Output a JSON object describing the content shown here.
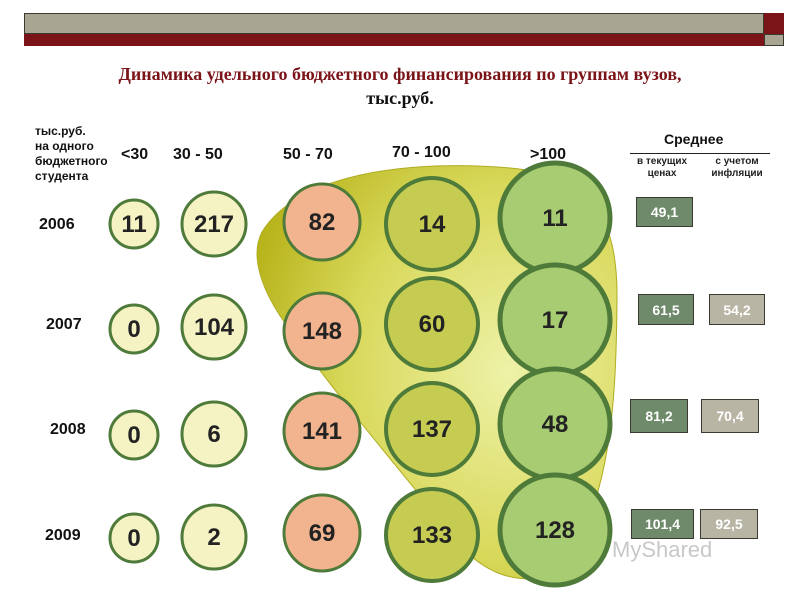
{
  "title_line1": "Динамика удельного бюджетного финансирования по группам вузов,",
  "title_line2": "тыс.руб.",
  "unit_label": [
    "тыс.руб.",
    "на одного",
    "бюджетного",
    "студента"
  ],
  "columns": [
    "<30",
    "30 - 50",
    "50 - 70",
    "70 - 100",
    ">100"
  ],
  "average": {
    "title": "Среднее",
    "sub_current": [
      "в текущих",
      "ценах"
    ],
    "sub_inflation": [
      "с учетом",
      "инфляции"
    ]
  },
  "watermark": "MyShared",
  "colors": {
    "title": "#7a1418",
    "circle_pale": "#f5f2c4",
    "circle_salmon": "#f2b48e",
    "circle_olive": "#c6cc52",
    "circle_green": "#a8cc72",
    "circle_border": "#4e7a3a",
    "area_fill": "#c8c62c",
    "box_current": "#6e8a6a",
    "box_inflation": "#b8b5a4"
  },
  "chart_data": {
    "type": "table",
    "years": [
      "2006",
      "2007",
      "2008",
      "2009"
    ],
    "groups": [
      "<30",
      "30 - 50",
      "50 - 70",
      "70 - 100",
      ">100"
    ],
    "values": [
      [
        "11",
        "217",
        "82",
        "14",
        "11"
      ],
      [
        "0",
        "104",
        "148",
        "60",
        "17"
      ],
      [
        "0",
        "6",
        "141",
        "137",
        "48"
      ],
      [
        "0",
        "2",
        "69",
        "133",
        "128"
      ]
    ],
    "avg_current_prices": [
      "49,1",
      "61,5",
      "81,2",
      "101,4"
    ],
    "avg_inflation_adjusted": [
      "",
      "54,2",
      "70,4",
      "92,5"
    ]
  }
}
